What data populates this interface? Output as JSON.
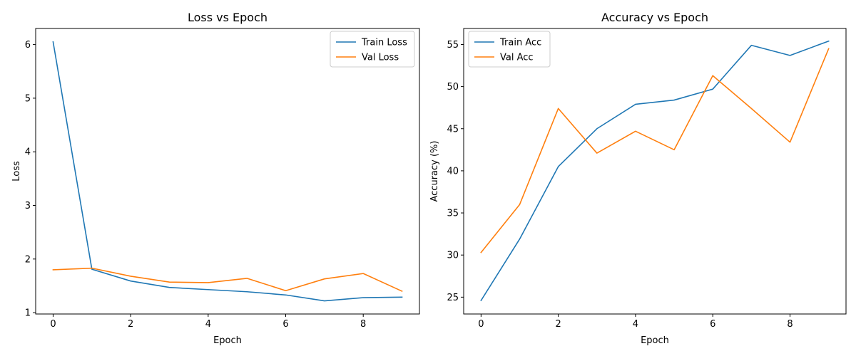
{
  "chart_data": [
    {
      "type": "line",
      "title": "Loss vs Epoch",
      "xlabel": "Epoch",
      "ylabel": "Loss",
      "x": [
        0,
        1,
        2,
        3,
        4,
        5,
        6,
        7,
        8,
        9
      ],
      "xlim": [
        -0.45,
        9.45
      ],
      "ylim": [
        0.975,
        6.3
      ],
      "xticks": [
        0,
        2,
        4,
        6,
        8
      ],
      "yticks": [
        1,
        2,
        3,
        4,
        5,
        6
      ],
      "legend": "top-right",
      "grid": false,
      "series": [
        {
          "name": "Train Loss",
          "color": "#1f77b4",
          "values": [
            6.05,
            1.81,
            1.59,
            1.47,
            1.43,
            1.39,
            1.33,
            1.22,
            1.28,
            1.29
          ]
        },
        {
          "name": "Val Loss",
          "color": "#ff7f0e",
          "values": [
            1.8,
            1.83,
            1.68,
            1.57,
            1.56,
            1.64,
            1.41,
            1.63,
            1.73,
            1.4
          ]
        }
      ]
    },
    {
      "type": "line",
      "title": "Accuracy vs Epoch",
      "xlabel": "Epoch",
      "ylabel": "Accuracy (%)",
      "x": [
        0,
        1,
        2,
        3,
        4,
        5,
        6,
        7,
        8,
        9
      ],
      "xlim": [
        -0.45,
        9.45
      ],
      "ylim": [
        23.0,
        56.9
      ],
      "xticks": [
        0,
        2,
        4,
        6,
        8
      ],
      "yticks": [
        25,
        30,
        35,
        40,
        45,
        50,
        55
      ],
      "legend": "top-left",
      "grid": false,
      "series": [
        {
          "name": "Train Acc",
          "color": "#1f77b4",
          "values": [
            24.6,
            31.9,
            40.5,
            45.0,
            47.9,
            48.4,
            49.7,
            54.9,
            53.7,
            55.4
          ]
        },
        {
          "name": "Val Acc",
          "color": "#ff7f0e",
          "values": [
            30.3,
            36.0,
            47.4,
            42.1,
            44.7,
            42.5,
            51.3,
            47.4,
            43.4,
            54.5
          ]
        }
      ]
    }
  ]
}
